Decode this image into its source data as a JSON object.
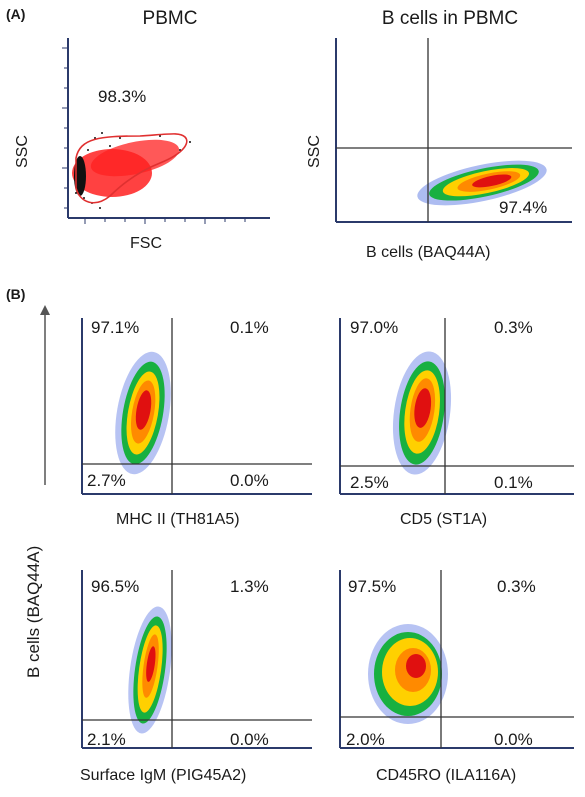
{
  "panel_a": {
    "label": "(A)",
    "plots": [
      {
        "title": "PBMC",
        "x_label": "FSC",
        "y_label": "SSC",
        "gate_percent": "98.3%"
      },
      {
        "title": "B cells in PBMC",
        "x_label": "B cells (BAQ44A)",
        "y_label": "SSC",
        "gate_percent": "97.4%"
      }
    ]
  },
  "panel_b": {
    "label": "(B)",
    "shared_y_label": "B cells (BAQ44A)",
    "plots": [
      {
        "x_label": "MHC II (TH81A5)",
        "quadrants": {
          "upper_left": "97.1%",
          "upper_right": "0.1%",
          "lower_left": "2.7%",
          "lower_right": "0.0%"
        }
      },
      {
        "x_label": "CD5 (ST1A)",
        "quadrants": {
          "upper_left": "97.0%",
          "upper_right": "0.3%",
          "lower_left": "2.5%",
          "lower_right": "0.1%"
        }
      },
      {
        "x_label": "Surface IgM (PIG45A2)",
        "quadrants": {
          "upper_left": "96.5%",
          "upper_right": "1.3%",
          "lower_left": "2.1%",
          "lower_right": "0.0%"
        }
      },
      {
        "x_label": "CD45RO (ILA116A)",
        "quadrants": {
          "upper_left": "97.5%",
          "upper_right": "0.3%",
          "lower_left": "2.0%",
          "lower_right": "0.0%"
        }
      }
    ]
  },
  "colors": {
    "axis": "#2b3a6b",
    "gate": "#e03030",
    "quadrant_line": "#333333",
    "density_high": "#e01010",
    "density_mid": "#ffd000",
    "density_low": "#18b040",
    "density_edge": "#2050d0"
  }
}
